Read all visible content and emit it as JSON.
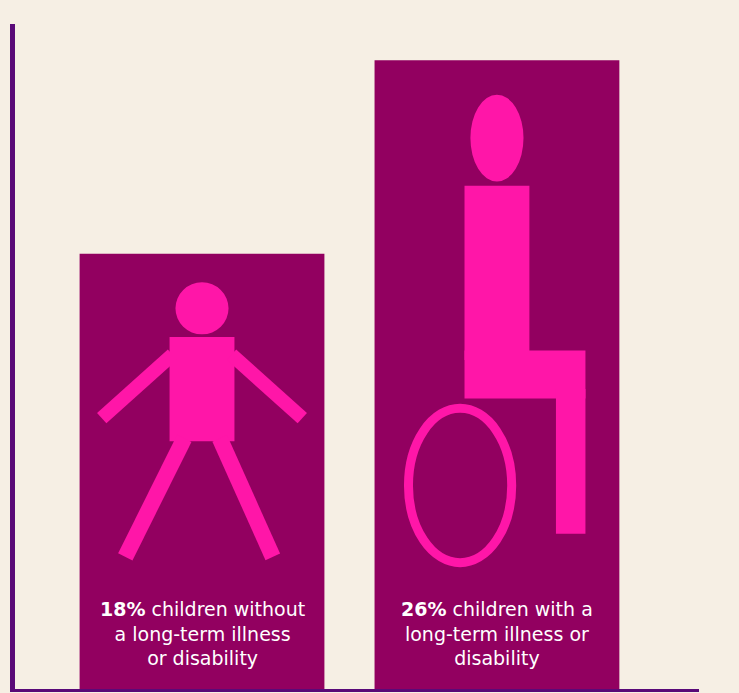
{
  "chart_data": {
    "type": "bar",
    "categories": [
      "children without a long-term illness or disability",
      "children with a long-term illness or disability"
    ],
    "values": [
      18,
      26
    ],
    "value_labels": [
      "18%",
      "26%"
    ],
    "color": "#920060",
    "ylim": [
      0,
      27.5
    ],
    "data_labels": true,
    "tick_labels": false,
    "grid": false
  }
}
